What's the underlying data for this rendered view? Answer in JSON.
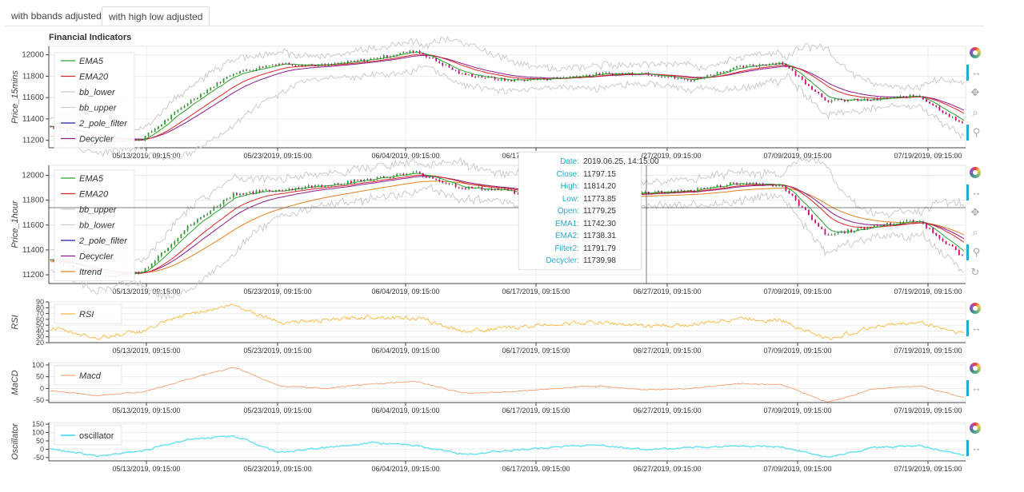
{
  "tabs": [
    {
      "label": "with bbands adjusted",
      "active": false
    },
    {
      "label": "with high low adjusted",
      "active": true
    }
  ],
  "page_title": "Financial Indicators",
  "colors": {
    "ema5": "#2ca02c",
    "ema20": "#d62728",
    "bb": "#cccccc",
    "pole": "#1f1fa0",
    "decycler": "#8b1a8b",
    "itrend": "#e08020",
    "rsi": "#f5b942",
    "macd": "#f0a070",
    "osc": "#66e0f0",
    "accent": "#26aad1",
    "up": "#2ca02c",
    "down": "#d6007a"
  },
  "tooltip": {
    "rows": [
      {
        "key": "Date:",
        "value": "2019.06.25, 14:15:00"
      },
      {
        "key": "Close:",
        "value": "11797.15"
      },
      {
        "key": "High:",
        "value": "11814.20"
      },
      {
        "key": "Low:",
        "value": "11773.85"
      },
      {
        "key": "Open:",
        "value": "11779.25"
      },
      {
        "key": "EMA1:",
        "value": "11742.30"
      },
      {
        "key": "EMA2:",
        "value": "11738.31"
      },
      {
        "key": "Filter2:",
        "value": "11791.79"
      },
      {
        "key": "Decycler:",
        "value": "11739.98"
      }
    ]
  },
  "chart_data": [
    {
      "type": "line",
      "ylabel": "Price_15mins",
      "ylim": [
        11130,
        12080
      ],
      "yticks": [
        11200,
        11400,
        11600,
        11800,
        12000
      ],
      "xticks": [
        "05/13/2019, 09:15:00",
        "05/23/2019, 09:15:00",
        "06/04/2019, 09:15:00",
        "06/17/2019, 09:15:00",
        "06/27/2019, 09:15:00",
        "07/09/2019, 09:15:00",
        "07/19/2019, 09:15:00"
      ],
      "legend_position": "left",
      "legend": [
        "EMA5",
        "EMA20",
        "bb_lower",
        "bb_upper",
        "2_pole_filter",
        "Decycler"
      ],
      "x": [
        0,
        4,
        8,
        12,
        16,
        20,
        24,
        28,
        32,
        36,
        40,
        44,
        48,
        52,
        56,
        60,
        64,
        68,
        72,
        76,
        80
      ],
      "close": [
        11330,
        11180,
        11210,
        11550,
        11830,
        11920,
        11900,
        11960,
        12040,
        11820,
        11760,
        11780,
        11820,
        11830,
        11760,
        11880,
        11930,
        11570,
        11580,
        11620,
        11340
      ]
    },
    {
      "type": "line",
      "ylabel": "Price_1hour",
      "ylim": [
        11130,
        12080
      ],
      "yticks": [
        11200,
        11400,
        11600,
        11800,
        12000
      ],
      "xticks": [
        "05/13/2019, 09:15:00",
        "05/23/2019, 09:15:00",
        "06/04/2019, 09:15:00",
        "06/17/2019, 09:15:00",
        "06/27/2019, 09:15:00",
        "07/09/2019, 09:15:00",
        "07/19/2019, 09:15:00"
      ],
      "legend_position": "left",
      "legend": [
        "EMA5",
        "EMA20",
        "bb_upper",
        "bb_lower",
        "2_pole_filter",
        "Decycler",
        "Itrend"
      ],
      "x": [
        0,
        4,
        8,
        12,
        16,
        20,
        24,
        28,
        32,
        36,
        40,
        44,
        48,
        52,
        56,
        60,
        64,
        68,
        72,
        76,
        80
      ],
      "close": [
        11320,
        11180,
        11220,
        11580,
        11850,
        11880,
        11920,
        11970,
        12020,
        11900,
        11880,
        11790,
        11840,
        11860,
        11870,
        11940,
        11920,
        11520,
        11590,
        11640,
        11340
      ]
    },
    {
      "type": "line",
      "ylabel": "RSI",
      "ylim": [
        20,
        90
      ],
      "yticks": [
        20,
        30,
        40,
        50,
        60,
        70,
        80,
        90
      ],
      "xticks": [
        "05/13/2019, 09:15:00",
        "05/23/2019, 09:15:00",
        "06/04/2019, 09:15:00",
        "06/17/2019, 09:15:00",
        "06/27/2019, 09:15:00",
        "07/09/2019, 09:15:00",
        "07/19/2019, 09:15:00"
      ],
      "legend_position": "left",
      "series": [
        {
          "name": "RSI",
          "x": [
            0,
            4,
            8,
            12,
            16,
            20,
            24,
            28,
            32,
            36,
            40,
            44,
            48,
            52,
            56,
            60,
            64,
            68,
            72,
            76,
            80
          ],
          "values": [
            45,
            28,
            40,
            70,
            85,
            55,
            58,
            65,
            62,
            40,
            45,
            52,
            55,
            48,
            50,
            62,
            58,
            25,
            48,
            55,
            35
          ]
        }
      ]
    },
    {
      "type": "line",
      "ylabel": "MaCD",
      "ylim": [
        -60,
        110
      ],
      "yticks": [
        -50,
        0,
        50,
        100
      ],
      "xticks": [
        "05/13/2019, 09:15:00",
        "05/23/2019, 09:15:00",
        "06/04/2019, 09:15:00",
        "06/17/2019, 09:15:00",
        "06/27/2019, 09:15:00",
        "07/09/2019, 09:15:00",
        "07/19/2019, 09:15:00"
      ],
      "legend_position": "left",
      "series": [
        {
          "name": "Macd",
          "x": [
            0,
            4,
            8,
            12,
            16,
            20,
            24,
            28,
            32,
            36,
            40,
            44,
            48,
            52,
            56,
            60,
            64,
            68,
            72,
            76,
            80
          ],
          "values": [
            -10,
            -30,
            -15,
            40,
            90,
            10,
            0,
            20,
            30,
            -20,
            -15,
            0,
            10,
            -5,
            0,
            20,
            15,
            -60,
            0,
            10,
            -40
          ]
        }
      ]
    },
    {
      "type": "line",
      "ylabel": "Oscillator",
      "ylim": [
        -70,
        160
      ],
      "yticks": [
        -50,
        0,
        50,
        100,
        150
      ],
      "xticks": [
        "05/13/2019, 09:15:00",
        "05/23/2019, 09:15:00",
        "06/04/2019, 09:15:00",
        "06/17/2019, 09:15:00",
        "06/27/2019, 09:15:00",
        "07/09/2019, 09:15:00",
        "07/19/2019, 09:15:00"
      ],
      "legend_position": "left",
      "series": [
        {
          "name": "oscillator",
          "x": [
            0,
            4,
            8,
            12,
            16,
            20,
            24,
            28,
            32,
            36,
            40,
            44,
            48,
            52,
            56,
            60,
            64,
            68,
            72,
            76,
            80
          ],
          "values": [
            0,
            -40,
            -10,
            60,
            80,
            -20,
            10,
            40,
            20,
            -30,
            -10,
            15,
            25,
            -5,
            10,
            20,
            10,
            -50,
            10,
            20,
            -40
          ]
        }
      ]
    }
  ]
}
